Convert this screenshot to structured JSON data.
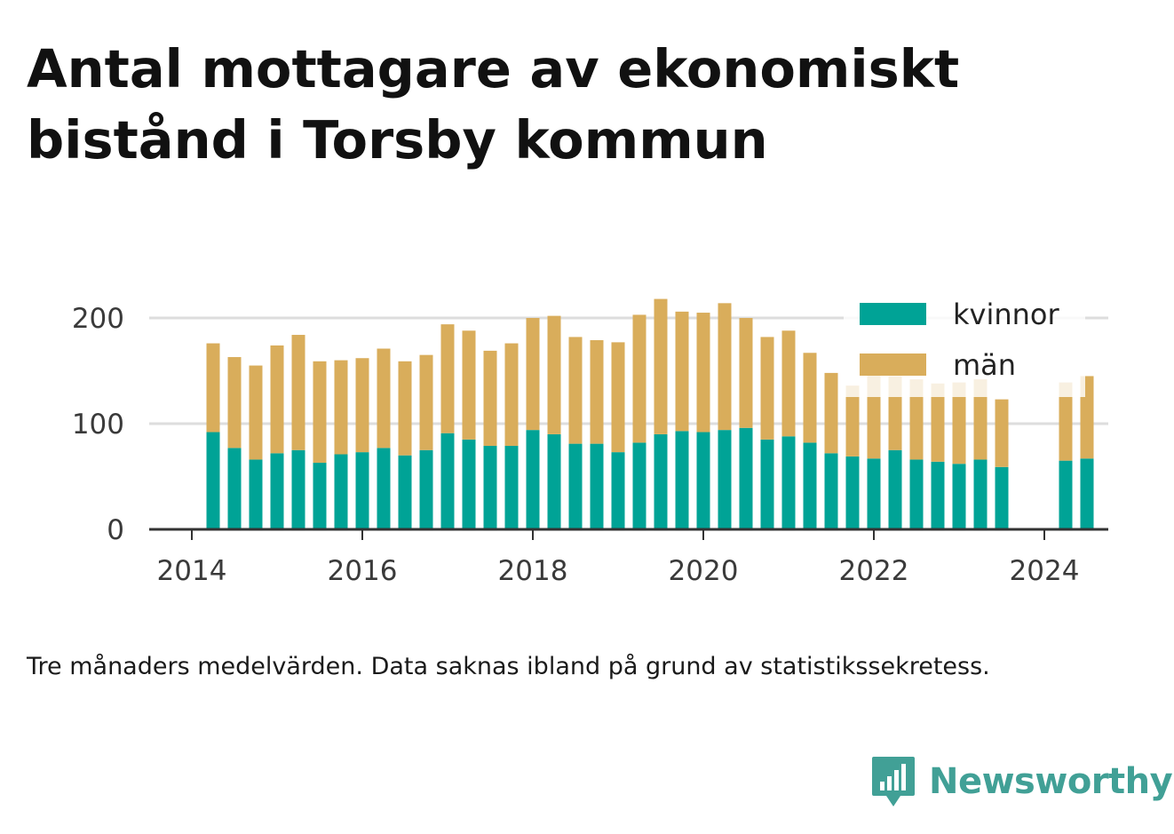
{
  "title_lines": [
    "Antal mottagare av ekonomiskt",
    "bistånd i Torsby kommun"
  ],
  "caption": "Tre månaders medelvärden. Data saknas ibland på grund av statistikssekretess.",
  "brand": {
    "name": "Newsworthy",
    "icon": "bar-chart-speech-bubble-icon",
    "color": "#41a096"
  },
  "chart_data": {
    "type": "bar",
    "stacked": true,
    "title": "Antal mottagare av ekonomiskt bistånd i Torsby kommun",
    "xlabel": "",
    "ylabel": "",
    "ylim": [
      0,
      225
    ],
    "y_ticks": [
      0,
      100,
      200
    ],
    "x_ticks": [
      2014,
      2016,
      2018,
      2020,
      2022,
      2024
    ],
    "xlim": [
      2013.5,
      2024.75
    ],
    "grid": "horizontal",
    "legend_position": "top-right",
    "colors": {
      "kvinnor": "#00a396",
      "män": "#d9ad5b",
      "grid": "#dddddd",
      "axis": "#333333"
    },
    "x": [
      2014.25,
      2014.5,
      2014.75,
      2015.0,
      2015.25,
      2015.5,
      2015.75,
      2016.0,
      2016.25,
      2016.5,
      2016.75,
      2017.0,
      2017.25,
      2017.5,
      2017.75,
      2018.0,
      2018.25,
      2018.5,
      2018.75,
      2019.0,
      2019.25,
      2019.5,
      2019.75,
      2020.0,
      2020.25,
      2020.5,
      2020.75,
      2021.0,
      2021.25,
      2021.5,
      2021.75,
      2022.0,
      2022.25,
      2022.5,
      2022.75,
      2023.0,
      2023.25,
      2023.5,
      2024.25,
      2024.5
    ],
    "series": [
      {
        "name": "kvinnor",
        "values": [
          92,
          77,
          66,
          72,
          75,
          63,
          71,
          73,
          77,
          70,
          75,
          91,
          85,
          79,
          79,
          94,
          90,
          81,
          81,
          73,
          82,
          90,
          93,
          92,
          94,
          96,
          85,
          88,
          82,
          72,
          69,
          67,
          75,
          66,
          64,
          62,
          66,
          59,
          65,
          67
        ]
      },
      {
        "name": "män",
        "values": [
          84,
          86,
          89,
          102,
          109,
          96,
          89,
          89,
          94,
          89,
          90,
          103,
          103,
          90,
          97,
          106,
          112,
          101,
          98,
          104,
          121,
          128,
          113,
          113,
          120,
          104,
          97,
          100,
          85,
          76,
          67,
          80,
          70,
          76,
          74,
          77,
          76,
          64,
          74,
          78
        ]
      }
    ]
  }
}
